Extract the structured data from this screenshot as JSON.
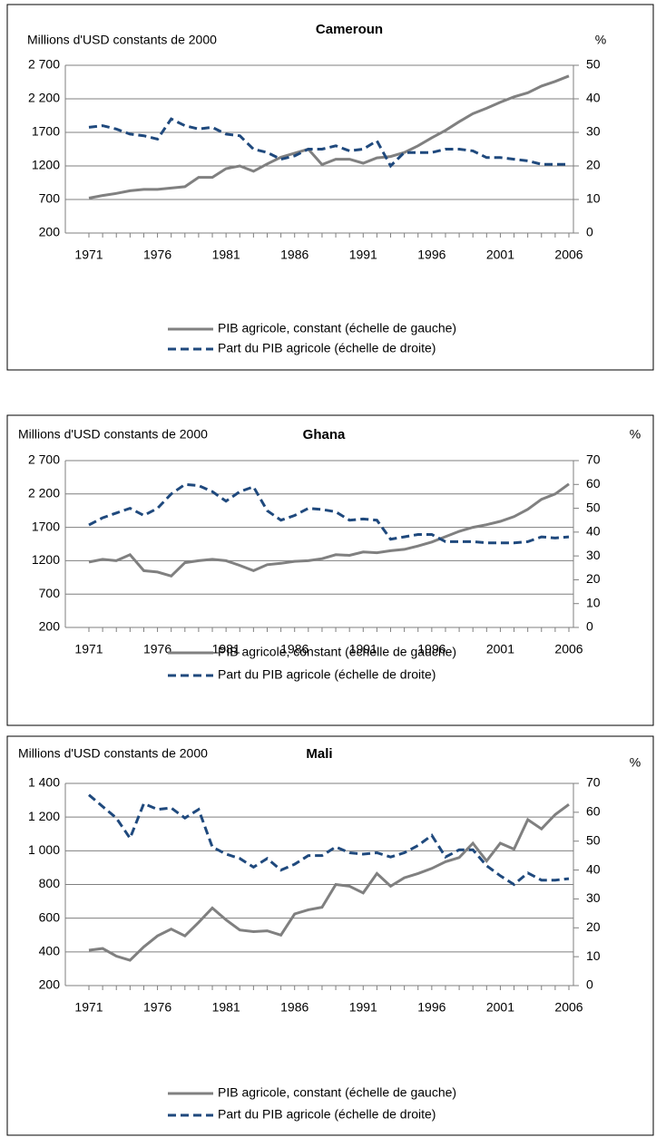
{
  "chart_data": [
    {
      "type": "line",
      "title": "Cameroun",
      "y_label": "Millions d'USD constants de 2000",
      "y2_label": "%",
      "categories": [
        "1971",
        null,
        null,
        null,
        null,
        "1976",
        null,
        null,
        null,
        null,
        "1981",
        null,
        null,
        null,
        null,
        "1986",
        null,
        null,
        null,
        null,
        "1991",
        null,
        null,
        null,
        null,
        "1996",
        null,
        null,
        null,
        null,
        "2001",
        null,
        null,
        null,
        null,
        "2006"
      ],
      "series": [
        {
          "name": "PIB agricole, constant (échelle de gauche)",
          "color": "#808080",
          "values": [
            720,
            760,
            790,
            830,
            850,
            850,
            870,
            890,
            1030,
            1030,
            1160,
            1200,
            1120,
            1230,
            1330,
            1390,
            1450,
            1220,
            1300,
            1300,
            1240,
            1320,
            1340,
            1400,
            1500,
            1620,
            1730,
            1860,
            1980,
            2060,
            2150,
            2230,
            2290,
            2390,
            2460,
            2540
          ]
        },
        {
          "name": "Part du PIB agricole (échelle de droite)",
          "color": "#1f497d",
          "axis": "y2",
          "dashed": true,
          "values": [
            31.5,
            32,
            31,
            29.5,
            29,
            28,
            34,
            32,
            31,
            31.5,
            29.5,
            29,
            25,
            24,
            22,
            23,
            25,
            25,
            26,
            24.5,
            25,
            27.5,
            20,
            24,
            24,
            24,
            25,
            25,
            24.5,
            22.5,
            22.5,
            22,
            21.5,
            20.5,
            20.5,
            20.5
          ]
        }
      ],
      "ylim": [
        200,
        2700
      ],
      "yticks": [
        200,
        700,
        1200,
        1700,
        {
          "value": 2200,
          "label": "2 200"
        },
        {
          "value": 2700,
          "label": "2 700"
        }
      ],
      "y2lim": [
        0,
        50
      ],
      "y2ticks": [
        0,
        10,
        20,
        30,
        40,
        50
      ],
      "grid": true
    },
    {
      "type": "line",
      "title": "Ghana",
      "y_label": "Millions d'USD constants de 2000",
      "y2_label": "%",
      "categories": [
        "1971",
        null,
        null,
        null,
        null,
        "1976",
        null,
        null,
        null,
        null,
        "1981",
        null,
        null,
        null,
        null,
        "1986",
        null,
        null,
        null,
        null,
        "1991",
        null,
        null,
        null,
        null,
        "1996",
        null,
        null,
        null,
        null,
        "2001",
        null,
        null,
        null,
        null,
        "2006"
      ],
      "series": [
        {
          "name": "PIB agricole, constant (échelle de gauche)",
          "color": "#808080",
          "values": [
            1180,
            1220,
            1200,
            1290,
            1050,
            1030,
            970,
            1170,
            1200,
            1220,
            1200,
            1130,
            1050,
            1140,
            1160,
            1190,
            1200,
            1230,
            1290,
            1280,
            1330,
            1320,
            1350,
            1370,
            1420,
            1480,
            1560,
            1640,
            1700,
            1740,
            1790,
            1860,
            1970,
            2120,
            2200,
            2350
          ]
        },
        {
          "name": "Part du PIB agricole (échelle de droite)",
          "color": "#1f497d",
          "axis": "y2",
          "dashed": true,
          "values": [
            43,
            46,
            48,
            50,
            47,
            50,
            56,
            60,
            59.5,
            57,
            53,
            57,
            59,
            49,
            45,
            47,
            50,
            49.5,
            48.5,
            45,
            45.5,
            45,
            37,
            38,
            39,
            39,
            36,
            36,
            36,
            35.5,
            35.5,
            35.5,
            36,
            38,
            37.5,
            38
          ]
        }
      ],
      "ylim": [
        200,
        2700
      ],
      "yticks": [
        200,
        700,
        1200,
        1700,
        {
          "value": 2200,
          "label": "2 200"
        },
        {
          "value": 2700,
          "label": "2 700"
        }
      ],
      "y2lim": [
        0,
        70
      ],
      "y2ticks": [
        0,
        10,
        20,
        30,
        40,
        50,
        60,
        70
      ],
      "grid": true
    },
    {
      "type": "line",
      "title": "Mali",
      "y_label": "Millions d'USD constants de 2000",
      "y2_label": "%",
      "categories": [
        "1971",
        null,
        null,
        null,
        null,
        "1976",
        null,
        null,
        null,
        null,
        "1981",
        null,
        null,
        null,
        null,
        "1986",
        null,
        null,
        null,
        null,
        "1991",
        null,
        null,
        null,
        null,
        "1996",
        null,
        null,
        null,
        null,
        "2001",
        null,
        null,
        null,
        null,
        "2006"
      ],
      "series": [
        {
          "name": "PIB agricole, constant (échelle de gauche)",
          "color": "#808080",
          "values": [
            410,
            420,
            375,
            350,
            430,
            495,
            535,
            495,
            575,
            660,
            590,
            530,
            520,
            525,
            500,
            625,
            650,
            665,
            800,
            790,
            750,
            865,
            790,
            840,
            865,
            895,
            935,
            960,
            1045,
            940,
            1045,
            1010,
            1185,
            1130,
            1215,
            1275
          ]
        },
        {
          "name": "Part du PIB agricole (échelle de droite)",
          "color": "#1f497d",
          "axis": "y2",
          "dashed": true,
          "values": [
            66,
            62,
            58,
            51,
            63,
            61,
            61.5,
            58,
            61,
            48,
            45.5,
            44,
            41,
            44,
            40,
            42,
            45,
            45,
            48,
            46,
            45.5,
            46,
            44.5,
            46,
            48.5,
            52,
            44.5,
            47,
            47,
            41.5,
            38,
            35,
            39,
            36.5,
            36.5,
            37
          ]
        }
      ],
      "ylim": [
        200,
        1400
      ],
      "yticks": [
        200,
        400,
        600,
        800,
        {
          "value": 1000,
          "label": "1 000"
        },
        {
          "value": 1200,
          "label": "1 200"
        },
        {
          "value": 1400,
          "label": "1 400"
        }
      ],
      "y2lim": [
        0,
        70
      ],
      "y2ticks": [
        0,
        10,
        20,
        30,
        40,
        50,
        60,
        70
      ],
      "grid": true
    }
  ]
}
